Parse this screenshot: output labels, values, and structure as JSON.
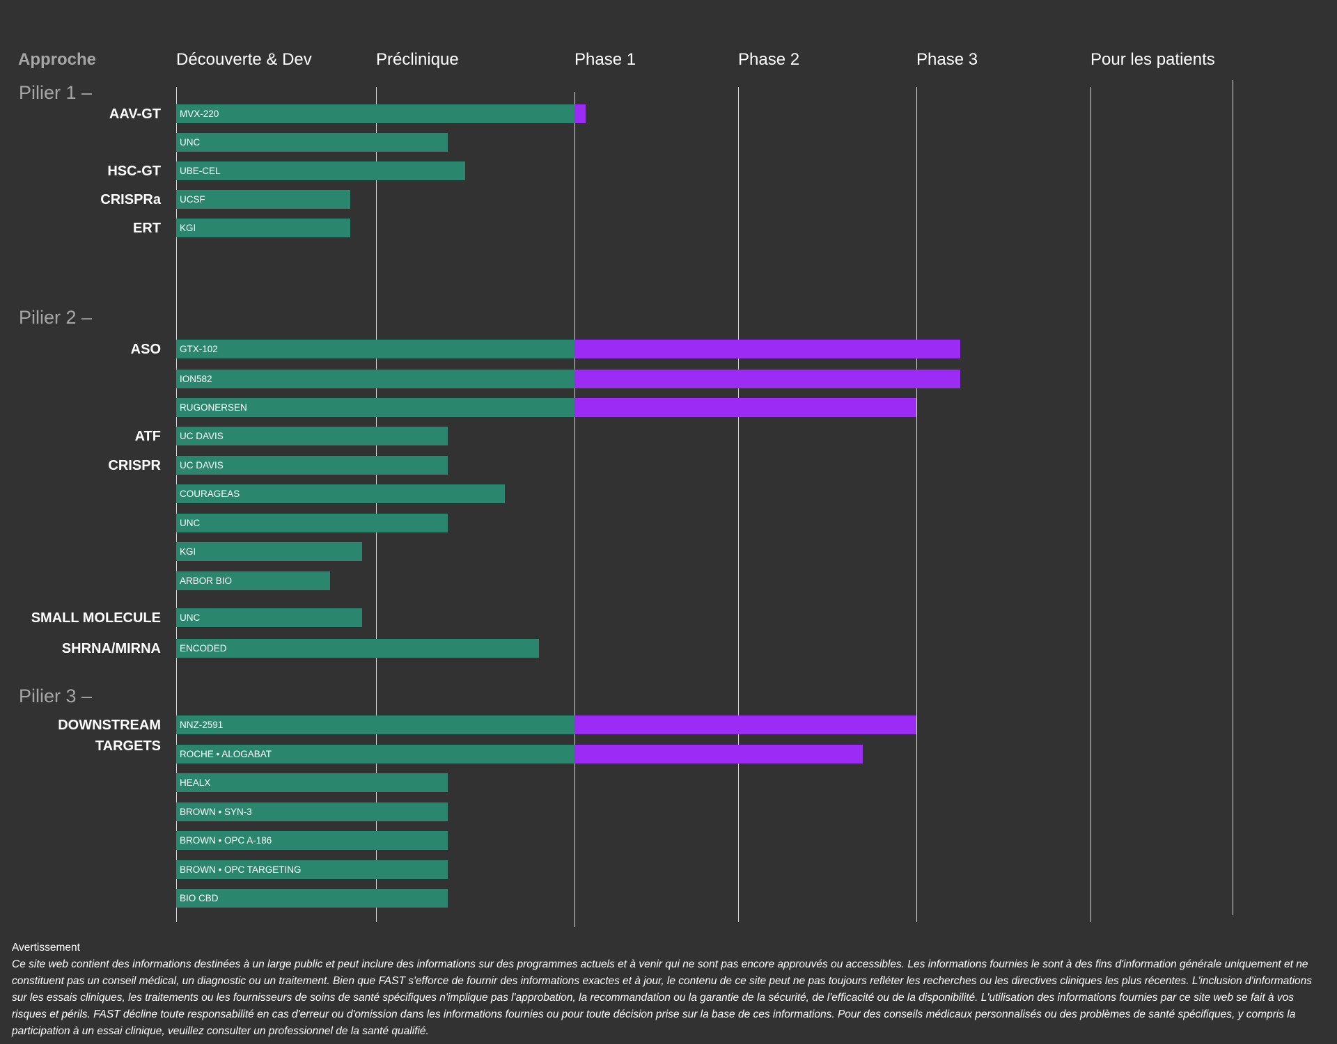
{
  "chart_data": {
    "type": "bar",
    "orientation": "horizontal",
    "stacked": true,
    "approach_header": "Approche",
    "phases": [
      "Découverte & Dev",
      "Préclinique",
      "Phase 1",
      "Phase 2",
      "Phase 3",
      "Pour les patients"
    ],
    "colors": {
      "development": "#2a866c",
      "clinical": "#9b2bf5",
      "background": "#333233",
      "grid": "#d9d9d9",
      "muted": "#a6a6a6"
    },
    "pillars": [
      {
        "title": "Pilier 1 –"
      },
      {
        "title": "Pilier 2 –"
      },
      {
        "title": "Pilier 3 –"
      }
    ],
    "approaches": [
      {
        "label": "AAV-GT"
      },
      {
        "label": "HSC-GT"
      },
      {
        "label": "CRISPRa"
      },
      {
        "label": "ERT"
      },
      {
        "label": "ASO"
      },
      {
        "label": "ATF"
      },
      {
        "label": "CRISPR"
      },
      {
        "label": "SMALL MOLECULE"
      },
      {
        "label": "SHRNA/MIRNA"
      },
      {
        "label": "DOWNSTREAM\nTARGETS"
      }
    ],
    "programs": [
      {
        "label": "MVX-220",
        "pillar": 1,
        "approach": "AAV-GT",
        "progress": 2.07
      },
      {
        "label": "UNC",
        "pillar": 1,
        "approach": "AAV-GT",
        "progress": 1.36
      },
      {
        "label": "UBE-CEL",
        "pillar": 1,
        "approach": "HSC-GT",
        "progress": 1.45
      },
      {
        "label": "UCSF",
        "pillar": 1,
        "approach": "CRISPRa",
        "progress": 0.87
      },
      {
        "label": "KGI",
        "pillar": 1,
        "approach": "ERT",
        "progress": 0.87
      },
      {
        "label": "GTX-102",
        "pillar": 2,
        "approach": "ASO",
        "progress": 4.25
      },
      {
        "label": "ION582",
        "pillar": 2,
        "approach": "ASO",
        "progress": 4.25
      },
      {
        "label": "RUGONERSEN",
        "pillar": 2,
        "approach": "ASO",
        "progress": 4.0
      },
      {
        "label": "UC DAVIS",
        "pillar": 2,
        "approach": "ATF",
        "progress": 1.36
      },
      {
        "label": "UC DAVIS",
        "pillar": 2,
        "approach": "CRISPR",
        "progress": 1.36
      },
      {
        "label": "COURAGEAS",
        "pillar": 2,
        "approach": "CRISPR",
        "progress": 1.65
      },
      {
        "label": "UNC",
        "pillar": 2,
        "approach": "CRISPR",
        "progress": 1.36
      },
      {
        "label": "KGI",
        "pillar": 2,
        "approach": "CRISPR",
        "progress": 0.93
      },
      {
        "label": "ARBOR BIO",
        "pillar": 2,
        "approach": "CRISPR",
        "progress": 0.77
      },
      {
        "label": "UNC",
        "pillar": 2,
        "approach": "SMALL MOLECULE",
        "progress": 0.93
      },
      {
        "label": "ENCODED",
        "pillar": 2,
        "approach": "SHRNA/MIRNA",
        "progress": 1.82
      },
      {
        "label": "NNZ-2591",
        "pillar": 3,
        "approach": "DOWNSTREAM TARGETS",
        "progress": 4.0
      },
      {
        "label": "ROCHE • ALOGABAT",
        "pillar": 3,
        "approach": "DOWNSTREAM TARGETS",
        "progress": 3.7
      },
      {
        "label": "HEALX",
        "pillar": 3,
        "approach": "DOWNSTREAM TARGETS",
        "progress": 1.36
      },
      {
        "label": "BROWN • SYN-3",
        "pillar": 3,
        "approach": "DOWNSTREAM TARGETS",
        "progress": 1.36
      },
      {
        "label": "BROWN • OPC A-186",
        "pillar": 3,
        "approach": "DOWNSTREAM TARGETS",
        "progress": 1.36
      },
      {
        "label": "BROWN • OPC TARGETING",
        "pillar": 3,
        "approach": "DOWNSTREAM TARGETS",
        "progress": 1.36
      },
      {
        "label": "BIO CBD",
        "pillar": 3,
        "approach": "DOWNSTREAM TARGETS",
        "progress": 1.36
      }
    ]
  },
  "disclaimer": {
    "title": "Avertissement",
    "text": "Ce site web contient des informations destinées à un large public et peut inclure des informations sur des programmes actuels et à venir qui ne sont pas encore approuvés ou accessibles. Les informations fournies le sont à des fins d'information générale uniquement et ne constituent pas un conseil médical, un diagnostic ou un traitement. Bien que FAST s'efforce de fournir des informations exactes et à jour, le contenu de ce site peut ne pas toujours refléter les recherches ou les directives cliniques les plus récentes. L'inclusion d'informations sur les essais cliniques, les traitements ou les fournisseurs de soins de santé spécifiques n'implique pas l'approbation, la recommandation ou la garantie de la sécurité, de l'efficacité ou de la disponibilité. L'utilisation des informations fournies par ce site web se fait à vos risques et périls. FAST décline toute responsabilité en cas d'erreur ou d'omission dans les informations fournies ou pour toute décision prise sur la base de ces informations. Pour des conseils médicaux personnalisés ou des problèmes de santé spécifiques, y compris la participation à un essai clinique, veuillez consulter un professionnel de la santé qualifié."
  }
}
